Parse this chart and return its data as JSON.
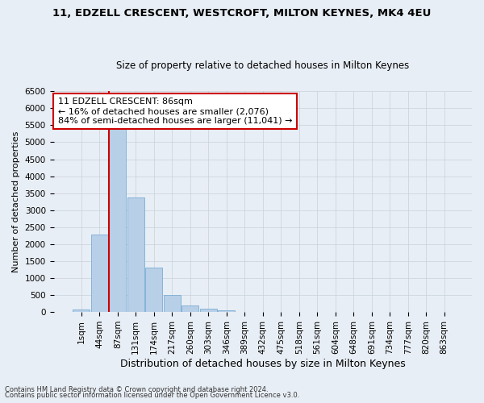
{
  "title1": "11, EDZELL CRESCENT, WESTCROFT, MILTON KEYNES, MK4 4EU",
  "title2": "Size of property relative to detached houses in Milton Keynes",
  "xlabel": "Distribution of detached houses by size in Milton Keynes",
  "ylabel": "Number of detached properties",
  "footer1": "Contains HM Land Registry data © Crown copyright and database right 2024.",
  "footer2": "Contains public sector information licensed under the Open Government Licence v3.0.",
  "categories": [
    "1sqm",
    "44sqm",
    "87sqm",
    "131sqm",
    "174sqm",
    "217sqm",
    "260sqm",
    "303sqm",
    "346sqm",
    "389sqm",
    "432sqm",
    "475sqm",
    "518sqm",
    "561sqm",
    "604sqm",
    "648sqm",
    "691sqm",
    "734sqm",
    "777sqm",
    "820sqm",
    "863sqm"
  ],
  "values": [
    75,
    2270,
    5440,
    3380,
    1300,
    490,
    195,
    90,
    50,
    0,
    0,
    0,
    0,
    0,
    0,
    0,
    0,
    0,
    0,
    0,
    0
  ],
  "ylim": [
    0,
    6500
  ],
  "yticks": [
    0,
    500,
    1000,
    1500,
    2000,
    2500,
    3000,
    3500,
    4000,
    4500,
    5000,
    5500,
    6000,
    6500
  ],
  "bar_color": "#b8cfe8",
  "bar_edge_color": "#7aadd4",
  "annotation_title": "11 EDZELL CRESCENT: 86sqm",
  "annotation_line1": "← 16% of detached houses are smaller (2,076)",
  "annotation_line2": "84% of semi-detached houses are larger (11,041) →",
  "vline_color": "#cc0000",
  "annotation_box_edge": "#cc0000",
  "bg_color": "#e8eef5",
  "grid_color": "#c8d0da",
  "title1_fontsize": 9.5,
  "title2_fontsize": 8.5,
  "xlabel_fontsize": 9,
  "ylabel_fontsize": 8,
  "tick_fontsize": 7.5,
  "annot_fontsize": 8
}
